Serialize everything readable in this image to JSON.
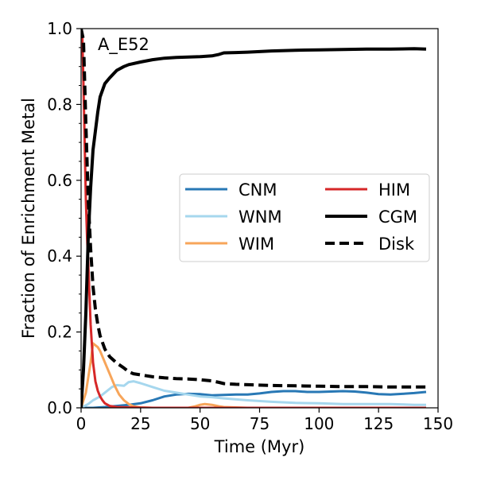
{
  "chart_data": {
    "type": "line",
    "title": "",
    "annotation": "A_E52",
    "xlabel": "Time (Myr)",
    "ylabel": "Fraction of Enrichment Metal",
    "xlim": [
      0,
      150
    ],
    "ylim": [
      0,
      1.0
    ],
    "xticks": [
      0,
      25,
      50,
      75,
      100,
      125,
      150
    ],
    "yticks": [
      0.0,
      0.2,
      0.4,
      0.6,
      0.8,
      1.0
    ],
    "xtick_labels": [
      "0",
      "25",
      "50",
      "75",
      "100",
      "125",
      "150"
    ],
    "ytick_labels": [
      "0.0",
      "0.2",
      "0.4",
      "0.6",
      "0.8",
      "1.0"
    ],
    "legend_position": "center-right",
    "series": [
      {
        "name": "CNM",
        "color": "#2878b5",
        "style": "solid",
        "width": 3,
        "x": [
          0,
          5,
          10,
          15,
          20,
          25,
          30,
          35,
          40,
          45,
          50,
          55,
          60,
          65,
          70,
          75,
          80,
          85,
          90,
          95,
          100,
          105,
          110,
          115,
          120,
          125,
          130,
          135,
          140,
          145
        ],
        "y": [
          0,
          0.0,
          0.002,
          0.005,
          0.008,
          0.012,
          0.02,
          0.03,
          0.035,
          0.037,
          0.036,
          0.033,
          0.034,
          0.035,
          0.035,
          0.038,
          0.042,
          0.044,
          0.044,
          0.042,
          0.042,
          0.043,
          0.044,
          0.043,
          0.04,
          0.036,
          0.035,
          0.037,
          0.039,
          0.042
        ]
      },
      {
        "name": "WNM",
        "color": "#a6d7ee",
        "style": "solid",
        "width": 3,
        "x": [
          0,
          3,
          5,
          8,
          10,
          13,
          15,
          18,
          20,
          22,
          25,
          30,
          35,
          40,
          45,
          50,
          55,
          60,
          70,
          80,
          90,
          100,
          110,
          120,
          130,
          140,
          145
        ],
        "y": [
          0,
          0.01,
          0.02,
          0.03,
          0.04,
          0.055,
          0.06,
          0.058,
          0.068,
          0.07,
          0.065,
          0.055,
          0.045,
          0.04,
          0.035,
          0.03,
          0.028,
          0.025,
          0.02,
          0.016,
          0.013,
          0.012,
          0.01,
          0.01,
          0.01,
          0.008,
          0.008
        ]
      },
      {
        "name": "WIM",
        "color": "#f7a55a",
        "style": "solid",
        "width": 3,
        "x": [
          0,
          2,
          4,
          5,
          6,
          7,
          8,
          10,
          12,
          14,
          16,
          18,
          20,
          22,
          25,
          30,
          40,
          45,
          48,
          50,
          52,
          55,
          58,
          60,
          70,
          80,
          90,
          100,
          120,
          145
        ],
        "y": [
          0,
          0.04,
          0.12,
          0.17,
          0.165,
          0.16,
          0.15,
          0.12,
          0.09,
          0.06,
          0.035,
          0.02,
          0.01,
          0.004,
          0.001,
          0.0,
          0.0,
          0.0,
          0.004,
          0.008,
          0.01,
          0.008,
          0.004,
          0.002,
          0.0,
          0.0,
          0.0,
          0.0,
          0.0,
          0.0
        ]
      },
      {
        "name": "HIM",
        "color": "#d62728",
        "style": "solid",
        "width": 3,
        "x": [
          0,
          0.5,
          1,
          1.5,
          2,
          2.5,
          3,
          3.5,
          4,
          5,
          6,
          7,
          8,
          9,
          10,
          12,
          15,
          20,
          30,
          60,
          100,
          145
        ],
        "y": [
          0.95,
          0.98,
          0.85,
          0.7,
          0.55,
          0.45,
          0.38,
          0.3,
          0.22,
          0.12,
          0.07,
          0.045,
          0.03,
          0.02,
          0.012,
          0.005,
          0.002,
          0.001,
          0.0,
          0.0,
          0.0,
          0.0
        ]
      },
      {
        "name": "CGM",
        "color": "#000000",
        "style": "solid",
        "width": 4,
        "x": [
          0,
          1,
          2,
          3,
          4,
          5,
          6,
          7,
          8,
          10,
          12,
          15,
          18,
          20,
          25,
          30,
          35,
          40,
          45,
          50,
          55,
          58,
          60,
          65,
          70,
          80,
          90,
          100,
          110,
          120,
          130,
          140,
          145
        ],
        "y": [
          0,
          0.1,
          0.25,
          0.45,
          0.58,
          0.68,
          0.73,
          0.78,
          0.82,
          0.855,
          0.87,
          0.89,
          0.9,
          0.905,
          0.912,
          0.918,
          0.922,
          0.924,
          0.925,
          0.926,
          0.928,
          0.932,
          0.936,
          0.937,
          0.938,
          0.941,
          0.943,
          0.944,
          0.945,
          0.946,
          0.946,
          0.947,
          0.946
        ]
      },
      {
        "name": "Disk",
        "color": "#000000",
        "style": "dashed",
        "width": 4,
        "x": [
          0,
          1,
          2,
          3,
          4,
          5,
          6,
          7,
          8,
          10,
          12,
          15,
          18,
          20,
          22,
          25,
          30,
          35,
          40,
          45,
          50,
          55,
          58,
          60,
          65,
          70,
          80,
          90,
          100,
          110,
          120,
          130,
          140,
          145
        ],
        "y": [
          1.0,
          0.97,
          0.75,
          0.55,
          0.42,
          0.32,
          0.26,
          0.22,
          0.19,
          0.155,
          0.135,
          0.118,
          0.105,
          0.095,
          0.09,
          0.087,
          0.082,
          0.079,
          0.077,
          0.076,
          0.074,
          0.071,
          0.067,
          0.064,
          0.062,
          0.061,
          0.059,
          0.058,
          0.057,
          0.056,
          0.056,
          0.055,
          0.055,
          0.055
        ]
      }
    ]
  }
}
